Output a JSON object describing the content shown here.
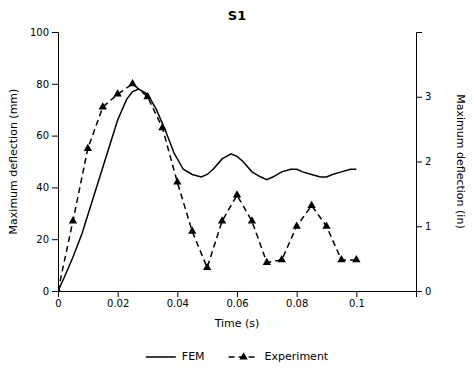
{
  "chart_data": {
    "type": "line",
    "title": "S1",
    "xlabel": "Time (s)",
    "ylabel": "Maximum deflection (mm)",
    "y2label": "Maximum deflection (in)",
    "xlim": [
      0,
      0.12
    ],
    "xticks": [
      0,
      0.02,
      0.04,
      0.06,
      0.08,
      0.1
    ],
    "ylim": [
      0,
      100
    ],
    "yticks": [
      0,
      20,
      40,
      60,
      80,
      100
    ],
    "y2lim": [
      0,
      4
    ],
    "y2ticks": [
      0,
      1,
      2,
      3
    ],
    "grid": false,
    "legend": "bottom",
    "series": [
      {
        "name": "FEM",
        "color": "#000000",
        "line_style": "solid",
        "x": [
          0,
          0.002,
          0.005,
          0.008,
          0.011,
          0.014,
          0.017,
          0.02,
          0.023,
          0.025,
          0.027,
          0.03,
          0.033,
          0.036,
          0.039,
          0.042,
          0.045,
          0.048,
          0.05,
          0.052,
          0.055,
          0.058,
          0.06,
          0.062,
          0.065,
          0.068,
          0.07,
          0.072,
          0.075,
          0.078,
          0.08,
          0.082,
          0.085,
          0.088,
          0.09,
          0.092,
          0.095,
          0.098,
          0.1
        ],
        "values": [
          0,
          5,
          13,
          22,
          33,
          44,
          55,
          66,
          74,
          77,
          78,
          76,
          70,
          62,
          53,
          47,
          45,
          44,
          45,
          47,
          51,
          53,
          52,
          50,
          46,
          44,
          43,
          44,
          46,
          47,
          47,
          46,
          45,
          44,
          44,
          45,
          46,
          47,
          47
        ]
      },
      {
        "name": "Experiment",
        "color": "#000000",
        "line_style": "dashed",
        "marker": "triangle",
        "x": [
          0,
          0.005,
          0.01,
          0.015,
          0.02,
          0.025,
          0.03,
          0.035,
          0.04,
          0.045,
          0.05,
          0.055,
          0.06,
          0.065,
          0.07,
          0.075,
          0.08,
          0.085,
          0.09,
          0.095,
          0.1
        ],
        "values": [
          0,
          27,
          55,
          71,
          76,
          80,
          75,
          63,
          42,
          23,
          9,
          27,
          37,
          27,
          11,
          12,
          25,
          33,
          25,
          12,
          12
        ]
      }
    ]
  }
}
